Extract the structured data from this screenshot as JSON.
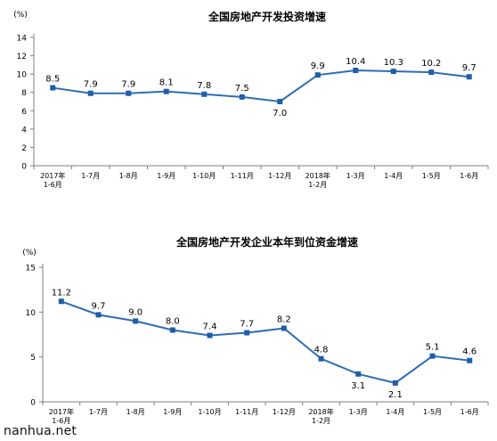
{
  "watermark": "nanhua.net",
  "colors": {
    "line": "#2e6db4",
    "marker": "#1f5ea8",
    "axis": "#7f7f7f",
    "text": "#000000"
  },
  "chart_data": [
    {
      "type": "line",
      "title": "全国房地产开发投资增速",
      "unit_label": "(%)",
      "ylim": [
        0,
        14
      ],
      "yticks": [
        0,
        2,
        4,
        6,
        8,
        10,
        12,
        14
      ],
      "grid": false,
      "categories": [
        [
          "2017年",
          "1-6月"
        ],
        [
          "1-7月"
        ],
        [
          "1-8月"
        ],
        [
          "1-9月"
        ],
        [
          "1-10月"
        ],
        [
          "1-11月"
        ],
        [
          "1-12月"
        ],
        [
          "2018年",
          "1-2月"
        ],
        [
          "1-3月"
        ],
        [
          "1-4月"
        ],
        [
          "1-5月"
        ],
        [
          "1-6月"
        ]
      ],
      "values": [
        8.5,
        7.9,
        7.9,
        8.1,
        7.8,
        7.5,
        7.0,
        9.9,
        10.4,
        10.3,
        10.2,
        9.7
      ],
      "data_labels": [
        "8.5",
        "7.9",
        "7.9",
        "8.1",
        "7.8",
        "7.5",
        "7.0",
        "9.9",
        "10.4",
        "10.3",
        "10.2",
        "9.7"
      ],
      "label_position": [
        "above",
        "above",
        "above",
        "above",
        "above",
        "above",
        "below",
        "above",
        "above",
        "above",
        "above",
        "above"
      ]
    },
    {
      "type": "line",
      "title": "全国房地产开发企业本年到位资金增速",
      "unit_label": "(%)",
      "ylim": [
        0,
        15
      ],
      "yticks": [
        0,
        5,
        10,
        15
      ],
      "grid": false,
      "categories": [
        [
          "2017年",
          "1-6月"
        ],
        [
          "1-7月"
        ],
        [
          "1-8月"
        ],
        [
          "1-9月"
        ],
        [
          "1-10月"
        ],
        [
          "1-11月"
        ],
        [
          "1-12月"
        ],
        [
          "2018年",
          "1-2月"
        ],
        [
          "1-3月"
        ],
        [
          "1-4月"
        ],
        [
          "1-5月"
        ],
        [
          "1-6月"
        ]
      ],
      "values": [
        11.2,
        9.7,
        9.0,
        8.0,
        7.4,
        7.7,
        8.2,
        4.8,
        3.1,
        2.1,
        5.1,
        4.6
      ],
      "data_labels": [
        "11.2",
        "9.7",
        "9.0",
        "8.0",
        "7.4",
        "7.7",
        "8.2",
        "4.8",
        "3.1",
        "2.1",
        "5.1",
        "4.6"
      ],
      "label_position": [
        "above",
        "above",
        "above",
        "above",
        "above",
        "above",
        "above",
        "above",
        "below",
        "below",
        "above",
        "above"
      ]
    }
  ]
}
